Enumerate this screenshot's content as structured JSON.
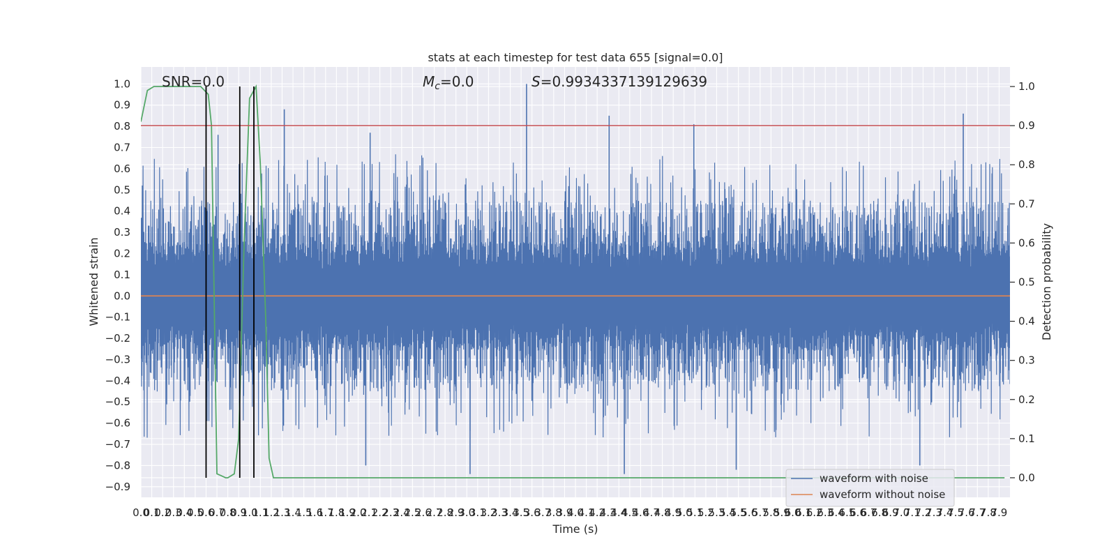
{
  "chart_data": {
    "type": "line",
    "title": "stats at each timestep for test data 655 [signal=0.0]",
    "xlabel": "Time (s)",
    "ylabel_left": "Whitened strain",
    "ylabel_right": "Detection probability",
    "xlim": [
      0.0,
      8.0
    ],
    "ylim_left": [
      -0.95,
      1.08
    ],
    "ylim_right": [
      -0.05,
      1.05
    ],
    "x_ticks": [
      0.0,
      0.1,
      0.2,
      0.3,
      0.4,
      0.5,
      0.6,
      0.7,
      0.8,
      0.9,
      1.0,
      1.1,
      1.2,
      1.3,
      1.4,
      1.5,
      1.6,
      1.7,
      1.8,
      1.9,
      2.0,
      2.1,
      2.2,
      2.3,
      2.4,
      2.5,
      2.6,
      2.7,
      2.8,
      2.9,
      3.0,
      3.1,
      3.2,
      3.3,
      3.4,
      3.5,
      3.6,
      3.7,
      3.8,
      3.9,
      4.0,
      4.1,
      4.2,
      4.3,
      4.4,
      4.5,
      4.6,
      4.7,
      4.8,
      4.9,
      5.0,
      5.1,
      5.2,
      5.3,
      5.4,
      5.5,
      5.6,
      5.7,
      5.8,
      5.9,
      6.0,
      6.1,
      6.2,
      6.3,
      6.4,
      6.5,
      6.6,
      6.7,
      6.8,
      6.9,
      7.0,
      7.1,
      7.2,
      7.3,
      7.4,
      7.5,
      7.6,
      7.7,
      7.8,
      7.9
    ],
    "x_tick_labels": [
      "0.0",
      "0.1",
      "0.2",
      "0.3",
      "0.4",
      "0.5",
      "0.6",
      "0.7",
      "0.8",
      "0.9",
      "1.0",
      "1.1",
      "1.2",
      "1.3",
      "1.4",
      "1.5",
      "1.6",
      "1.7",
      "1.8",
      "1.9",
      "2.0",
      "2.1",
      "2.2",
      "2.3",
      "2.4",
      "2.5",
      "2.6",
      "2.7",
      "2.8",
      "2.9",
      "3.0",
      "3.1",
      "3.2",
      "3.3",
      "3.4",
      "3.5",
      "3.6",
      "3.7",
      "3.8",
      "3.9",
      "4.0",
      "4.1",
      "4.2",
      "4.3",
      "4.4",
      "4.5",
      "4.6",
      "4.7",
      "4.8",
      "4.9",
      "5.0",
      "5.1",
      "5.2",
      "5.3",
      "5.4",
      "5.5",
      "5.6",
      "5.7",
      "5.8",
      "5.9",
      "6.0",
      "6.1",
      "6.2",
      "6.3",
      "6.4",
      "6.5",
      "6.6",
      "6.7",
      "6.8",
      "6.9",
      "7.0",
      "7.1",
      "7.2",
      "7.3",
      "7.4",
      "7.5",
      "7.6",
      "7.7",
      "7.8",
      "7.9"
    ],
    "y_left_ticks": [
      1.0,
      0.9,
      0.8,
      0.7,
      0.6,
      0.5,
      0.4,
      0.3,
      0.2,
      0.1,
      0.0,
      -0.1,
      -0.2,
      -0.3,
      -0.4,
      -0.5,
      -0.6,
      -0.7,
      -0.8,
      -0.9
    ],
    "y_left_tick_labels": [
      "1.0",
      "0.9",
      "0.8",
      "0.7",
      "0.6",
      "0.5",
      "0.4",
      "0.3",
      "0.2",
      "0.1",
      "0.0",
      "−0.1",
      "−0.2",
      "−0.3",
      "−0.4",
      "−0.5",
      "−0.6",
      "−0.7",
      "−0.8",
      "−0.9"
    ],
    "y_right_ticks": [
      1.0,
      0.9,
      0.8,
      0.7,
      0.6,
      0.5,
      0.4,
      0.3,
      0.2,
      0.1,
      0.0
    ],
    "y_right_tick_labels": [
      "1.0",
      "0.9",
      "0.8",
      "0.7",
      "0.6",
      "0.5",
      "0.4",
      "0.3",
      "0.2",
      "0.1",
      "0.0"
    ],
    "annotations": {
      "snr": "SNR=0.0",
      "mc_symbol": "M",
      "mc_sub": "c",
      "mc_value": "=0.0",
      "s_symbol": "S",
      "s_value": "=0.9934337139129639"
    },
    "series": [
      {
        "name": "waveform with noise",
        "color": "#4c72b0",
        "axis": "left",
        "description_envelope": {
          "typical_upper": 0.45,
          "typical_lower": -0.45,
          "core_upper": 0.26,
          "core_lower": -0.29
        },
        "spikes": [
          {
            "x": 1.32,
            "y": 0.88
          },
          {
            "x": 3.55,
            "y": 1.0
          },
          {
            "x": 4.31,
            "y": 0.85
          },
          {
            "x": 5.09,
            "y": 0.81
          },
          {
            "x": 7.57,
            "y": 0.86
          },
          {
            "x": 2.11,
            "y": 0.77
          },
          {
            "x": 0.71,
            "y": 0.76
          },
          {
            "x": 3.03,
            "y": -0.84
          },
          {
            "x": 4.45,
            "y": -0.84
          },
          {
            "x": 7.17,
            "y": -0.8
          },
          {
            "x": 2.07,
            "y": -0.8
          },
          {
            "x": 5.48,
            "y": -0.82
          }
        ]
      },
      {
        "name": "waveform without noise",
        "color": "#dd8452",
        "axis": "left",
        "x": [
          0.0,
          8.0
        ],
        "y": [
          0.0,
          0.0
        ]
      },
      {
        "name": "",
        "color": "#55a868",
        "axis": "right",
        "x": [
          0.0,
          0.06,
          0.12,
          0.2,
          0.3,
          0.4,
          0.5,
          0.55,
          0.62,
          0.65,
          0.7,
          0.74,
          0.78,
          0.8,
          0.86,
          0.9,
          0.95,
          1.0,
          1.06,
          1.1,
          1.15,
          1.18,
          1.22,
          7.95
        ],
        "y": [
          0.91,
          0.99,
          1.0,
          1.0,
          1.0,
          1.0,
          1.0,
          1.0,
          0.98,
          0.9,
          0.01,
          0.005,
          0.0,
          0.0,
          0.01,
          0.1,
          0.6,
          0.97,
          1.0,
          0.8,
          0.4,
          0.05,
          0.0,
          0.0
        ]
      }
    ],
    "threshold": {
      "axis": "right",
      "y": 0.9,
      "color": "#c44e52"
    },
    "vertical_lines": [
      {
        "x": 0.6,
        "y_top_right": 1.0,
        "color": "#000000"
      },
      {
        "x": 0.91,
        "y_top_right": 1.0,
        "color": "#000000"
      },
      {
        "x": 1.04,
        "y_top_right": 1.0,
        "color": "#000000"
      }
    ],
    "legend": {
      "placement": "lower-right",
      "entries": [
        "waveform with noise",
        "waveform without noise"
      ]
    },
    "grid": true
  }
}
